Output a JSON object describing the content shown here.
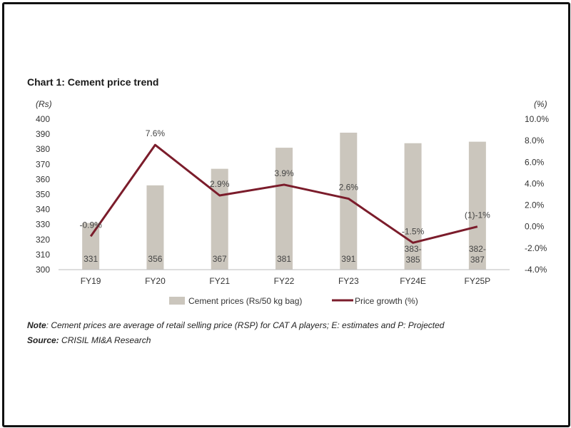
{
  "title": "Chart 1: Cement price trend",
  "note": {
    "label": "Note",
    "text": ": Cement prices are average of retail selling price (RSP) for CAT A players; E: estimates and P: Projected"
  },
  "source": {
    "label": "Source:",
    "text": " CRISIL MI&A Research"
  },
  "chart_data": {
    "type": "bar",
    "categories": [
      "FY19",
      "FY20",
      "FY21",
      "FY22",
      "FY23",
      "FY24E",
      "FY25P"
    ],
    "y_left": {
      "unit_label": "(Rs)",
      "ylim": [
        300,
        400
      ],
      "ticks": [
        "300",
        "310",
        "320",
        "330",
        "340",
        "350",
        "360",
        "370",
        "380",
        "390",
        "400"
      ]
    },
    "y_right": {
      "unit_label": "(%)",
      "ylim": [
        -4.0,
        10.0
      ],
      "ticks": [
        "-4.0%",
        "-2.0%",
        "0.0%",
        "2.0%",
        "4.0%",
        "6.0%",
        "8.0%",
        "10.0%"
      ]
    },
    "series": [
      {
        "name": "Cement prices (Rs/50 kg bag)",
        "type": "bar",
        "axis": "left",
        "color": "#cbc6bd",
        "values": [
          331,
          356,
          367,
          381,
          391,
          384,
          385
        ],
        "labels": [
          "331",
          "356",
          "367",
          "381",
          "391",
          "383-\n385",
          "382-\n387"
        ]
      },
      {
        "name": "Price growth (%)",
        "type": "line",
        "axis": "right",
        "color": "#7b1c2b",
        "values": [
          -0.9,
          7.6,
          2.9,
          3.9,
          2.6,
          -1.5,
          0.0
        ],
        "labels": [
          "-0.9%",
          "7.6%",
          "2.9%",
          "3.9%",
          "2.6%",
          "-1.5%",
          "(1)-1%"
        ]
      }
    ],
    "legend": "bottom",
    "grid": false
  }
}
